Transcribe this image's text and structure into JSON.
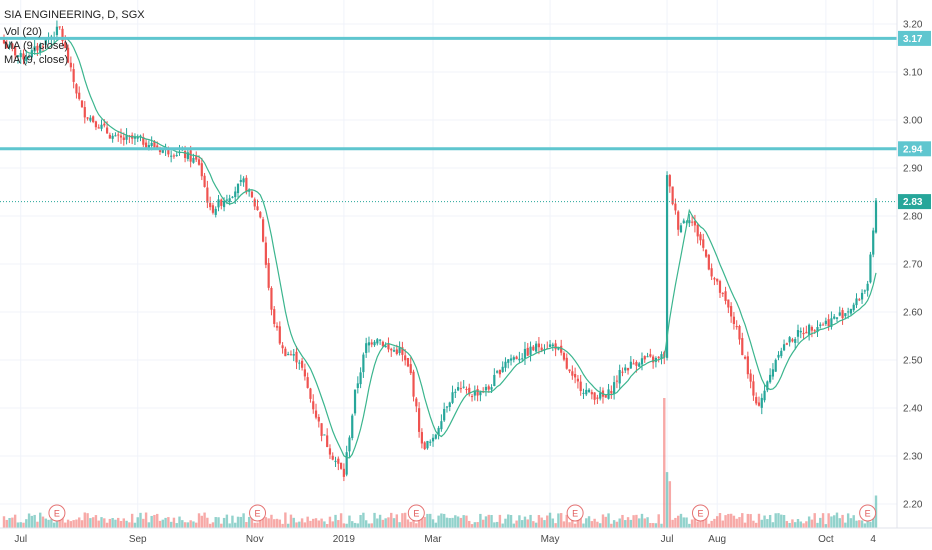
{
  "chart_data": {
    "type": "candlestick",
    "title": "SIA ENGINEERING, D, SGX",
    "legend": [
      "Vol (20)",
      "MA (9, close)",
      "MA (9, close)"
    ],
    "ylim": [
      2.15,
      3.25
    ],
    "y_ticks": [
      3.2,
      3.1,
      3.0,
      2.9,
      2.8,
      2.7,
      2.6,
      2.5,
      2.4,
      2.3,
      2.2
    ],
    "y_tick_labels": [
      "3.20",
      "3.10",
      "3.00",
      "2.90",
      "2.80",
      "2.70",
      "2.60",
      "2.50",
      "2.40",
      "2.30",
      "2.20"
    ],
    "x_ticks": [
      {
        "label": "Jul",
        "index": 6
      },
      {
        "label": "Sep",
        "index": 48
      },
      {
        "label": "Nov",
        "index": 90
      },
      {
        "label": "2019",
        "index": 122
      },
      {
        "label": "Mar",
        "index": 154
      },
      {
        "label": "May",
        "index": 196
      },
      {
        "label": "Jul",
        "index": 238
      },
      {
        "label": "Aug",
        "index": 256
      },
      {
        "label": "Oct",
        "index": 295
      },
      {
        "label": "4",
        "index": 312
      }
    ],
    "horizontal_lines": [
      {
        "price": 3.17,
        "label": "3.17",
        "color": "#5fc6cf"
      },
      {
        "price": 2.94,
        "label": "2.94",
        "color": "#5fc6cf"
      }
    ],
    "last_price": {
      "price": 2.83,
      "label": "2.83",
      "color": "#26a69a"
    },
    "earnings_markers": [
      {
        "label": "E",
        "index": 19
      },
      {
        "label": "E",
        "index": 91
      },
      {
        "label": "E",
        "index": 148
      },
      {
        "label": "E",
        "index": 205
      },
      {
        "label": "E",
        "index": 250
      },
      {
        "label": "E",
        "index": 310
      }
    ],
    "close_anchors": [
      [
        0,
        3.16
      ],
      [
        6,
        3.13
      ],
      [
        10,
        3.14
      ],
      [
        16,
        3.17
      ],
      [
        20,
        3.19
      ],
      [
        24,
        3.1
      ],
      [
        28,
        3.02
      ],
      [
        32,
        3.0
      ],
      [
        40,
        2.96
      ],
      [
        48,
        2.96
      ],
      [
        56,
        2.94
      ],
      [
        64,
        2.93
      ],
      [
        70,
        2.91
      ],
      [
        74,
        2.81
      ],
      [
        80,
        2.84
      ],
      [
        86,
        2.87
      ],
      [
        92,
        2.8
      ],
      [
        96,
        2.6
      ],
      [
        100,
        2.52
      ],
      [
        106,
        2.5
      ],
      [
        110,
        2.42
      ],
      [
        114,
        2.35
      ],
      [
        118,
        2.3
      ],
      [
        122,
        2.26
      ],
      [
        126,
        2.43
      ],
      [
        130,
        2.53
      ],
      [
        134,
        2.55
      ],
      [
        138,
        2.52
      ],
      [
        142,
        2.52
      ],
      [
        146,
        2.47
      ],
      [
        150,
        2.32
      ],
      [
        154,
        2.33
      ],
      [
        158,
        2.4
      ],
      [
        162,
        2.44
      ],
      [
        168,
        2.43
      ],
      [
        174,
        2.44
      ],
      [
        180,
        2.5
      ],
      [
        186,
        2.51
      ],
      [
        192,
        2.53
      ],
      [
        198,
        2.53
      ],
      [
        204,
        2.46
      ],
      [
        210,
        2.43
      ],
      [
        216,
        2.42
      ],
      [
        222,
        2.48
      ],
      [
        228,
        2.5
      ],
      [
        234,
        2.5
      ],
      [
        237,
        2.51
      ],
      [
        238,
        2.88
      ],
      [
        242,
        2.78
      ],
      [
        246,
        2.8
      ],
      [
        250,
        2.75
      ],
      [
        254,
        2.68
      ],
      [
        258,
        2.63
      ],
      [
        262,
        2.58
      ],
      [
        266,
        2.5
      ],
      [
        270,
        2.4
      ],
      [
        274,
        2.45
      ],
      [
        278,
        2.52
      ],
      [
        284,
        2.55
      ],
      [
        290,
        2.57
      ],
      [
        296,
        2.58
      ],
      [
        302,
        2.6
      ],
      [
        306,
        2.62
      ],
      [
        310,
        2.66
      ],
      [
        312,
        2.76
      ],
      [
        313,
        2.83
      ]
    ],
    "volume_spikes": [
      {
        "index": 237,
        "value": 10.0
      },
      {
        "index": 238,
        "value": 4.3
      },
      {
        "index": 239,
        "value": 3.6
      },
      {
        "index": 313,
        "value": 2.5
      }
    ]
  }
}
